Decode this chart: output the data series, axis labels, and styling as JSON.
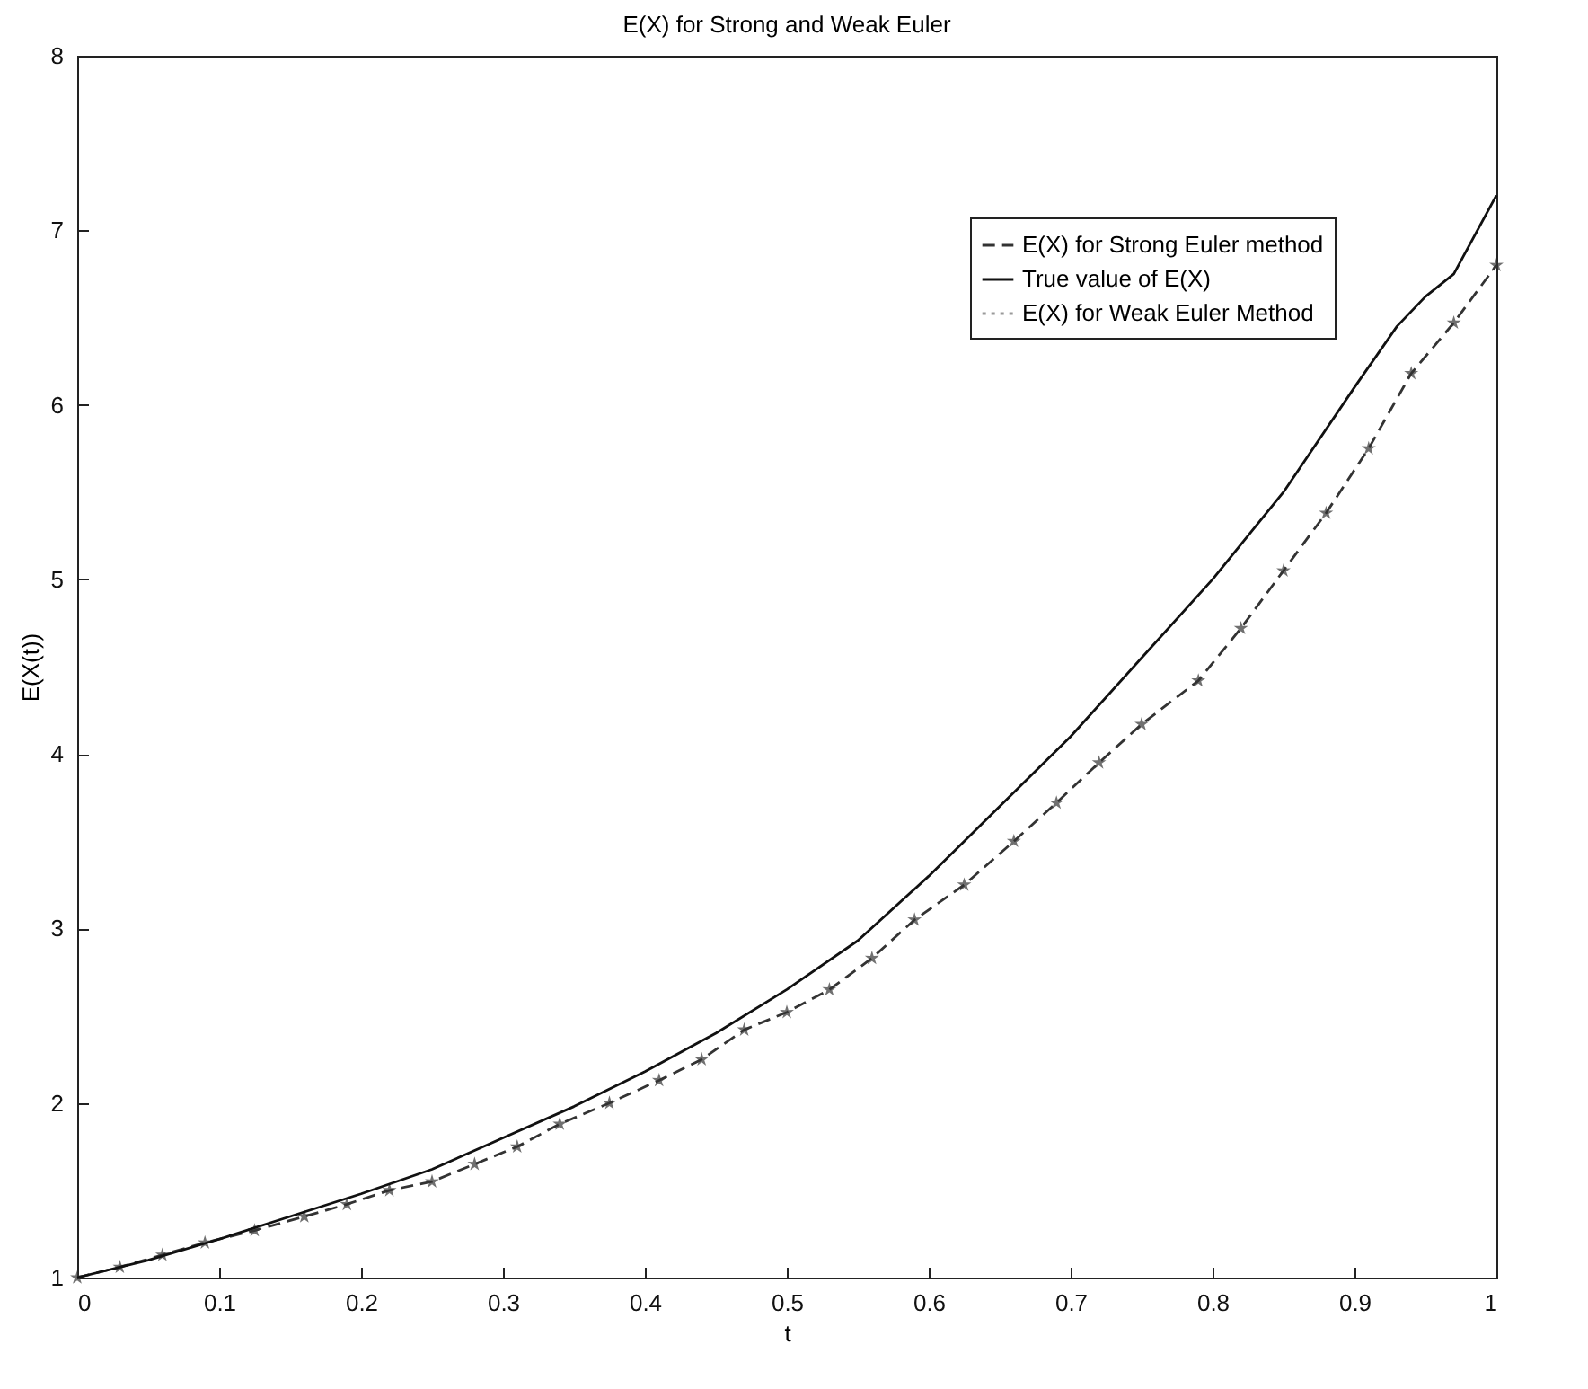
{
  "chart_data": {
    "type": "line",
    "title": "E(X) for Strong and Weak Euler",
    "xlabel": "t",
    "ylabel": "E(X(t))",
    "xlim": [
      0,
      1
    ],
    "ylim": [
      1,
      8
    ],
    "xticks": [
      0,
      0.1,
      0.2,
      0.3,
      0.4,
      0.5,
      0.6,
      0.7,
      0.8,
      0.9,
      1
    ],
    "yticks": [
      1,
      2,
      3,
      4,
      5,
      6,
      7,
      8
    ],
    "grid": false,
    "legend": "top right",
    "series": [
      {
        "name": "E(X) for Strong Euler method",
        "color": "#333333",
        "line_style": "dashed",
        "marker": "star",
        "x": [
          0,
          0.03,
          0.06,
          0.09,
          0.125,
          0.16,
          0.19,
          0.22,
          0.25,
          0.28,
          0.31,
          0.34,
          0.375,
          0.41,
          0.44,
          0.47,
          0.5,
          0.53,
          0.56,
          0.59,
          0.625,
          0.66,
          0.69,
          0.72,
          0.75,
          0.79,
          0.82,
          0.85,
          0.88,
          0.91,
          0.94,
          0.97,
          1
        ],
        "values": [
          1,
          1.06,
          1.13,
          1.2,
          1.27,
          1.35,
          1.42,
          1.5,
          1.55,
          1.65,
          1.75,
          1.88,
          2,
          2.13,
          2.25,
          2.42,
          2.52,
          2.65,
          2.83,
          3.05,
          3.25,
          3.5,
          3.72,
          3.95,
          4.17,
          4.42,
          4.72,
          5.05,
          5.38,
          5.75,
          6.18,
          6.47,
          6.8
        ]
      },
      {
        "name": "True value of E(X)",
        "color": "#111111",
        "line_style": "solid",
        "marker": "none",
        "x": [
          0,
          0.05,
          0.1,
          0.15,
          0.2,
          0.25,
          0.3,
          0.35,
          0.4,
          0.45,
          0.5,
          0.55,
          0.6,
          0.65,
          0.7,
          0.75,
          0.8,
          0.85,
          0.9,
          0.93,
          0.95,
          0.97,
          1
        ],
        "values": [
          1,
          1.1,
          1.22,
          1.35,
          1.48,
          1.62,
          1.8,
          1.98,
          2.18,
          2.4,
          2.65,
          2.93,
          3.3,
          3.7,
          4.1,
          4.55,
          5,
          5.5,
          6.1,
          6.45,
          6.62,
          6.75,
          7.2
        ]
      },
      {
        "name": "E(X) for Weak Euler Method",
        "color": "#9a9a9a",
        "line_style": "dotted",
        "marker": "none"
      }
    ]
  }
}
